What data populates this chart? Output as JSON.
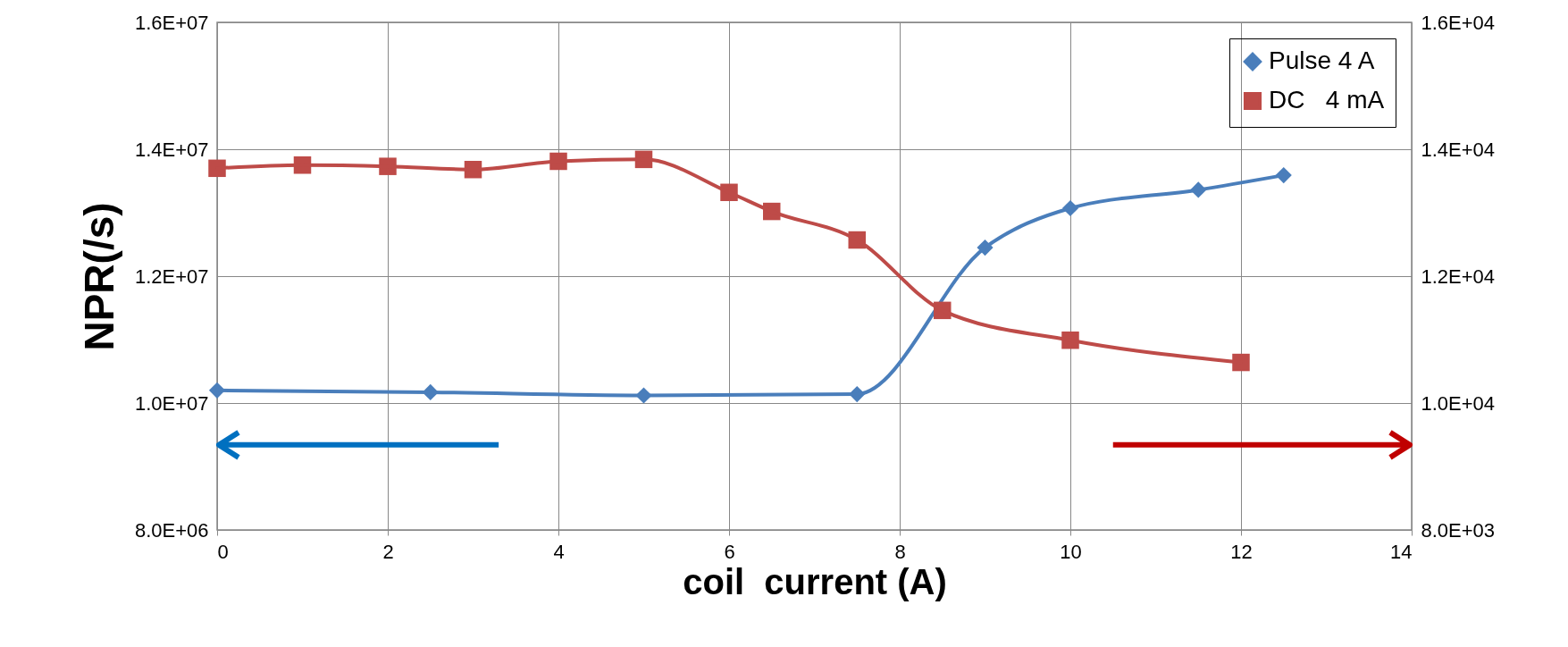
{
  "chart_data": {
    "type": "line",
    "xlabel": "coil  current (A)",
    "ylabel": "NPR(/s)",
    "xlim": [
      0,
      14
    ],
    "xticks": [
      0,
      2,
      4,
      6,
      8,
      10,
      12,
      14
    ],
    "ylim": [
      8000000,
      16000000
    ],
    "yticks": [
      {
        "value": 8000000,
        "label": "8.0E+06"
      },
      {
        "value": 10000000,
        "label": "1.0E+07"
      },
      {
        "value": 12000000,
        "label": "1.2E+07"
      },
      {
        "value": 14000000,
        "label": "1.4E+07"
      },
      {
        "value": 16000000,
        "label": "1.6E+07"
      }
    ],
    "y2lim": [
      8000,
      16000
    ],
    "y2ticks": [
      {
        "value": 8000,
        "label": "8.0E+03"
      },
      {
        "value": 10000,
        "label": "1.0E+04"
      },
      {
        "value": 12000,
        "label": "1.2E+04"
      },
      {
        "value": 14000,
        "label": "1.4E+04"
      },
      {
        "value": 16000,
        "label": "1.6E+04"
      }
    ],
    "grid": true,
    "legend": "top right",
    "series": [
      {
        "name": "Pulse 4 A",
        "color": "#4a7ebb",
        "marker": "diamond",
        "x": [
          0,
          2.5,
          5,
          7.5,
          9,
          10,
          11.5,
          12.5
        ],
        "values": [
          10200000,
          10170000,
          10120000,
          10140000,
          12450000,
          13070000,
          13360000,
          13590000
        ]
      },
      {
        "name": "DC   4 mA",
        "color": "#be4b48",
        "marker": "square",
        "axis": "y2",
        "x": [
          0,
          1,
          2,
          3,
          4,
          5,
          6,
          6.5,
          7.5,
          8.5,
          10,
          12
        ],
        "values": [
          13700,
          13750,
          13730,
          13680,
          13810,
          13840,
          13320,
          13020,
          12570,
          11460,
          10990,
          10640
        ]
      }
    ]
  }
}
